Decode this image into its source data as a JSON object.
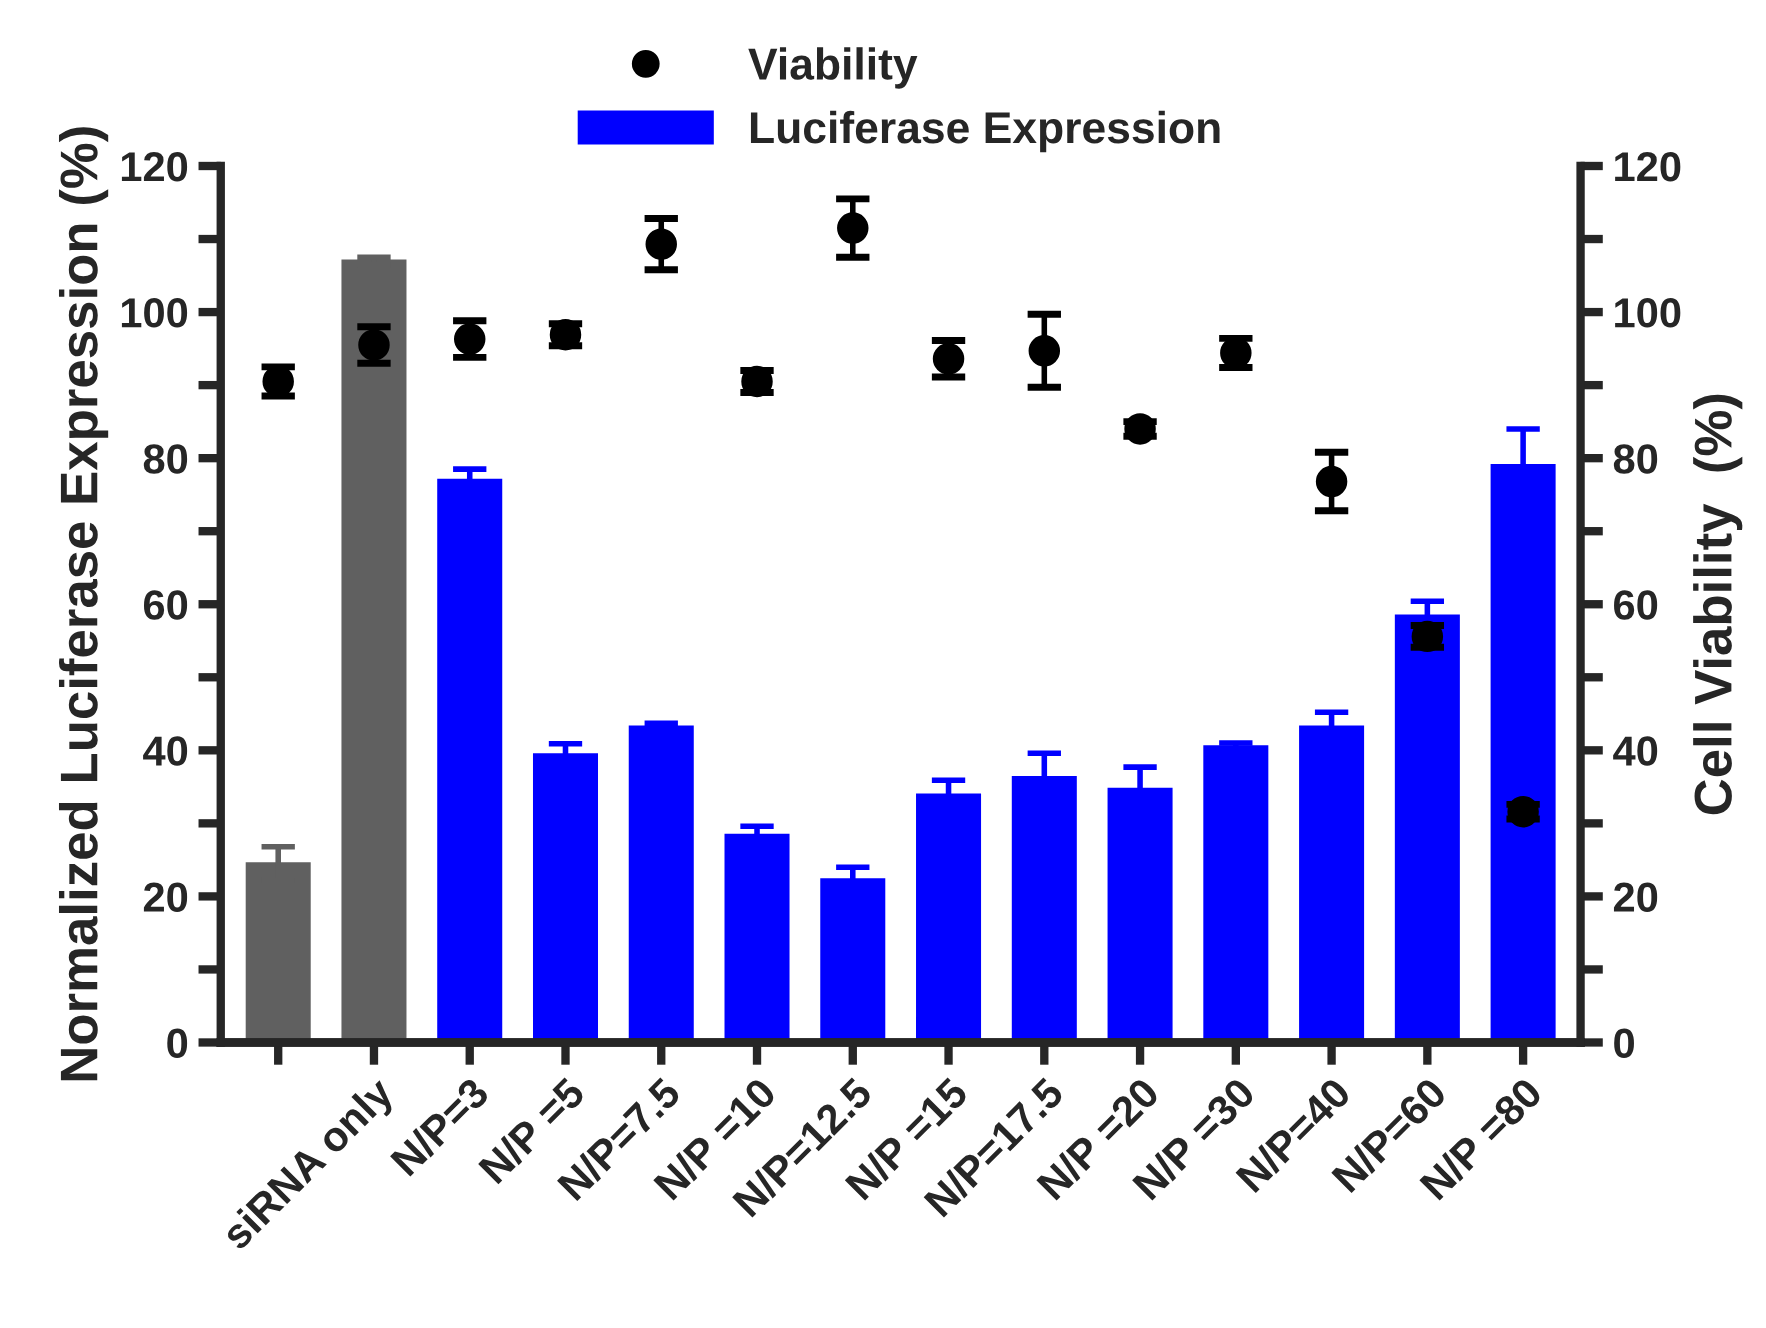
{
  "chart_data": {
    "type": "bar",
    "ylabel": "Normalized Luciferase Expression (%)",
    "y2label": "Cell Viability  (%)",
    "categories": [
      null,
      "siRNA only",
      "N/P=3",
      "N/P =5",
      "N/P=7.5",
      "N/P =10",
      "N/P=12.5",
      "N/P =15",
      "N/P=17.5",
      "N/P =20",
      "N/P =30",
      "N/P=40",
      "N/P=60",
      "N/P =80"
    ],
    "series": [
      {
        "name": "Luciferase Expression",
        "color": "#0000ff",
        "colors": [
          "#606060",
          "#606060",
          "#0000ff",
          "#0000ff",
          "#0000ff",
          "#0000ff",
          "#0000ff",
          "#0000ff",
          "#0000ff",
          "#0000ff",
          "#0000ff",
          "#0000ff",
          "#0000ff",
          "#0000ff"
        ],
        "values": [
          24.5,
          107,
          77,
          39.4,
          43.2,
          28.4,
          22.3,
          33.9,
          36.3,
          34.7,
          40.5,
          43.2,
          58.4,
          79
        ],
        "errors": [
          2.3,
          0.5,
          1.5,
          1.5,
          0.5,
          1.2,
          1.7,
          2,
          3.3,
          3,
          0.5,
          2,
          2,
          5
        ]
      },
      {
        "name": "Viability",
        "type": "scatter",
        "axis": "y2",
        "color": "#000000",
        "marker": "circle",
        "values": [
          90.5,
          95.5,
          96.3,
          96.9,
          109.3,
          90.5,
          111.5,
          93.6,
          94.7,
          84,
          94.4,
          76.8,
          55.6,
          31.6
        ],
        "errors": [
          2,
          2.5,
          2.5,
          1.5,
          3.5,
          1.5,
          4,
          2.5,
          5,
          1,
          2,
          4,
          1.5,
          1
        ]
      }
    ],
    "ylim": [
      0,
      120
    ],
    "yticks": [
      0,
      {
        "value": 10,
        "label": null
      },
      20,
      {
        "value": 30,
        "label": null
      },
      40,
      {
        "value": 50,
        "label": null
      },
      60,
      {
        "value": 70,
        "label": null
      },
      80,
      {
        "value": 90,
        "label": null
      },
      100,
      {
        "value": 110,
        "label": null
      },
      120
    ],
    "y2lim": [
      0,
      120
    ],
    "y2ticks": [
      0,
      {
        "value": 10,
        "label": null
      },
      20,
      {
        "value": 30,
        "label": null
      },
      40,
      {
        "value": 50,
        "label": null
      },
      60,
      {
        "value": 70,
        "label": null
      },
      80,
      {
        "value": 90,
        "label": null
      },
      100,
      {
        "value": 110,
        "label": null
      },
      120
    ],
    "grid": false,
    "legend": "top"
  }
}
